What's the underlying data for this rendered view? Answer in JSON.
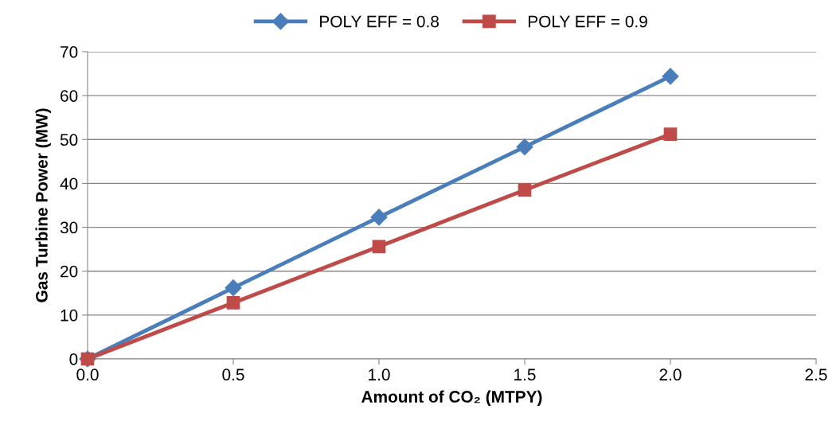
{
  "chart_data": {
    "type": "line",
    "xlabel": "Amount of CO₂ (MTPY)",
    "ylabel": "Gas Turbine Power (MW)",
    "x": [
      0,
      0.5,
      1.0,
      1.5,
      2.0
    ],
    "series": [
      {
        "name": "POLY EFF = 0.8",
        "color": "#4a7ebb",
        "marker": "diamond",
        "values": [
          0,
          16.2,
          32.3,
          48.3,
          64.4
        ]
      },
      {
        "name": "POLY EFF = 0.9",
        "color": "#be4b48",
        "marker": "square",
        "values": [
          0,
          12.8,
          25.6,
          38.5,
          51.2
        ]
      }
    ],
    "xlim": [
      0,
      2.5
    ],
    "xticks": [
      {
        "value": 0,
        "label": "0.0"
      },
      {
        "value": 0.5,
        "label": "0.5"
      },
      {
        "value": 1,
        "label": "1.0"
      },
      {
        "value": 1.5,
        "label": "1.5"
      },
      {
        "value": 2,
        "label": "2.0"
      },
      {
        "value": 2.5,
        "label": "2.5"
      }
    ],
    "ylim": [
      0,
      70
    ],
    "yticks": [
      0,
      10,
      20,
      30,
      40,
      50,
      60,
      70
    ],
    "grid": "y",
    "legend": "top",
    "line_style": "solid"
  }
}
